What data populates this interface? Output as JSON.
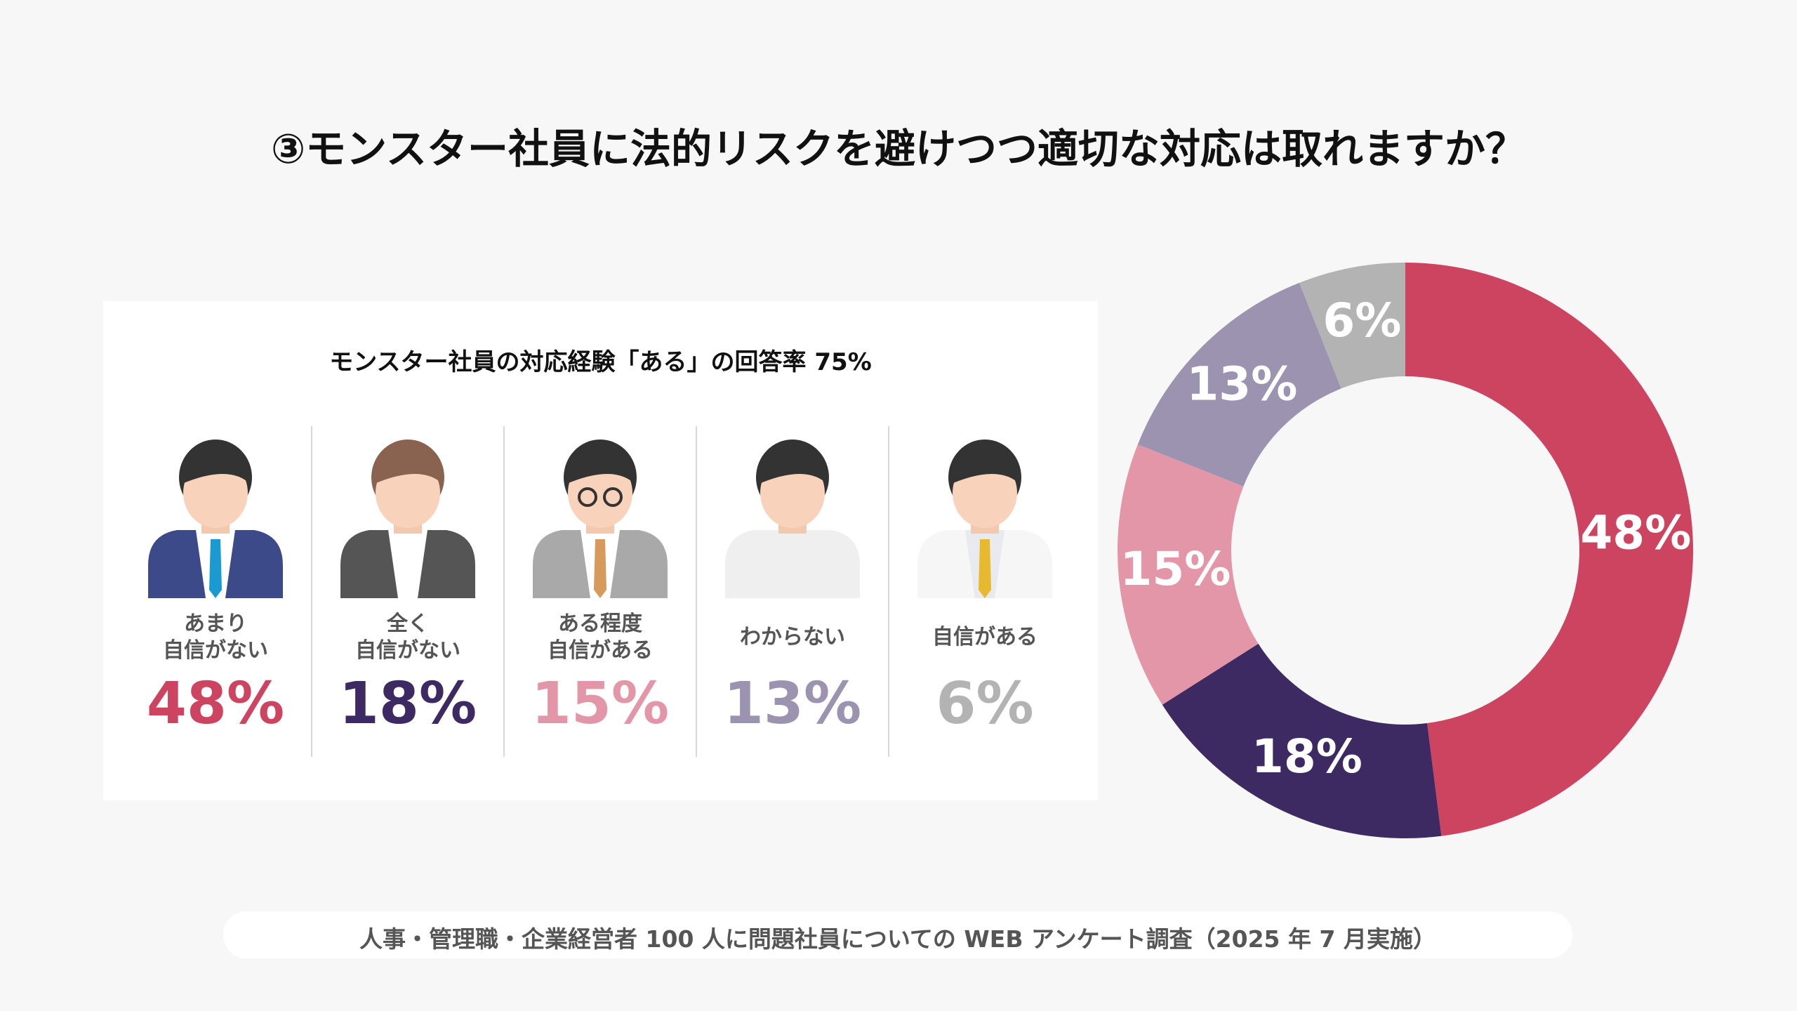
{
  "chart_data": {
    "type": "donut",
    "title": "③モンスター社員に法的リスクを避けつつ適切な対応は取れますか？",
    "subtitle": "モンスター社員の対応経験「ある」の回答率 75%",
    "categories": [
      "あまり\n自信がない",
      "全く\n自信がない",
      "ある程度\n自信がある",
      "わからない",
      "自信がある"
    ],
    "values": [
      48,
      18,
      15,
      13,
      6
    ],
    "value_labels": [
      "48%",
      "18%",
      "15%",
      "13%",
      "6%"
    ],
    "colors": [
      "#cc4460",
      "#3d2a62",
      "#e396a8",
      "#9b93b0",
      "#b3b3b3"
    ],
    "source": "人事・管理職・企業経営者 100 人に問題社員についての WEB アンケート調査（2025 年 7 月実施）"
  }
}
